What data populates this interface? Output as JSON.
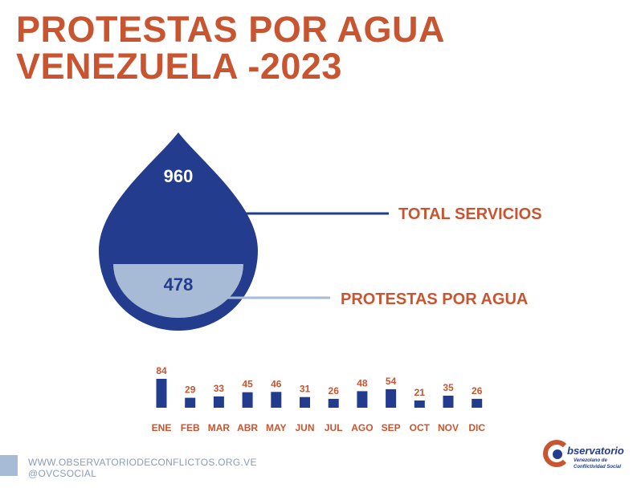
{
  "title": {
    "line1": "PROTESTAS POR AGUA",
    "line2": "VENEZUELA -2023"
  },
  "drop": {
    "total_value": "960",
    "total_label": "TOTAL SERVICIOS",
    "water_value": "478",
    "water_label": "PROTESTAS POR AGUA"
  },
  "colors": {
    "accent": "#c8552f",
    "dark_blue": "#233c8e",
    "light_blue": "#a7bad6"
  },
  "chart_data": {
    "type": "bar",
    "categories": [
      "ENE",
      "FEB",
      "MAR",
      "ABR",
      "MAY",
      "JUN",
      "JUL",
      "AGO",
      "SEP",
      "OCT",
      "NOV",
      "DIC"
    ],
    "values": [
      84,
      29,
      33,
      45,
      46,
      31,
      26,
      48,
      54,
      21,
      35,
      26
    ],
    "title": "",
    "xlabel": "",
    "ylabel": "",
    "ylim": [
      0,
      84
    ],
    "grid": false,
    "legend": "none"
  },
  "footer": {
    "website": "WWW.OBSERVATORIODECONFLICTOS.ORG.VE",
    "social": "@OVCSOCIAL"
  },
  "logo": {
    "name": "bservatorio",
    "line1": "Venezolano de",
    "line2": "Conflictividad Social"
  }
}
